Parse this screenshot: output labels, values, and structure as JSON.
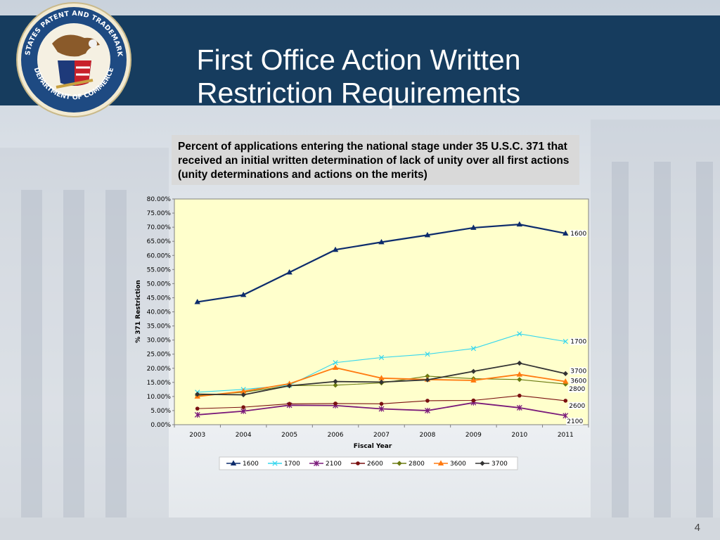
{
  "header": {
    "title_line1": "First Office Action Written",
    "title_line2": "Restriction Requirements",
    "seal_text_top": "UNITED STATES PATENT AND TRADEMARK OFFICE",
    "seal_text_bottom": "DEPARTMENT OF COMMERCE"
  },
  "caption": "Percent of applications entering the national stage under 35 U.S.C. 371 that received an initial written determination of lack of unity over all first actions (unity determinations and actions on the merits)",
  "page_number": "4",
  "chart_data": {
    "type": "line",
    "title": "",
    "xlabel": "Fiscal Year",
    "ylabel": "% 371 Restriction",
    "x": [
      "2003",
      "2004",
      "2005",
      "2006",
      "2007",
      "2008",
      "2009",
      "2010",
      "2011"
    ],
    "ylim": [
      0,
      80
    ],
    "yticks": [
      "0.00%",
      "5.00%",
      "10.00%",
      "15.00%",
      "20.00%",
      "25.00%",
      "30.00%",
      "35.00%",
      "40.00%",
      "45.00%",
      "50.00%",
      "55.00%",
      "60.00%",
      "65.00%",
      "70.00%",
      "75.00%",
      "80.00%"
    ],
    "grid": false,
    "legend_position": "bottom",
    "background": "#ffffcc",
    "series": [
      {
        "name": "1600",
        "color": "#0d2c6c",
        "marker": "triangle",
        "values": [
          43.5,
          46.0,
          54.0,
          62.0,
          64.7,
          67.2,
          69.8,
          71.0,
          67.8
        ]
      },
      {
        "name": "1700",
        "color": "#33d6ee",
        "marker": "x",
        "values": [
          11.5,
          12.5,
          14.0,
          22.0,
          23.8,
          25.0,
          27.0,
          32.2,
          29.5
        ]
      },
      {
        "name": "2100",
        "color": "#7a1a7a",
        "marker": "star",
        "values": [
          3.5,
          4.8,
          6.9,
          6.8,
          5.6,
          5.0,
          7.8,
          6.0,
          3.2
        ]
      },
      {
        "name": "2600",
        "color": "#7a1010",
        "marker": "circle",
        "values": [
          5.7,
          6.2,
          7.4,
          7.5,
          7.4,
          8.5,
          8.6,
          10.3,
          8.5
        ]
      },
      {
        "name": "2800",
        "color": "#6a7a10",
        "marker": "diamond",
        "values": [
          10.3,
          11.5,
          13.8,
          14.0,
          14.8,
          17.2,
          16.3,
          16.0,
          14.4
        ]
      },
      {
        "name": "3600",
        "color": "#ff7a10",
        "marker": "triangle",
        "values": [
          10.0,
          11.8,
          14.5,
          20.2,
          16.5,
          16.0,
          15.7,
          17.8,
          15.3
        ]
      },
      {
        "name": "3700",
        "color": "#333333",
        "marker": "diamond",
        "values": [
          10.8,
          10.6,
          13.8,
          15.3,
          15.1,
          15.9,
          18.9,
          21.8,
          18.1
        ]
      }
    ]
  }
}
